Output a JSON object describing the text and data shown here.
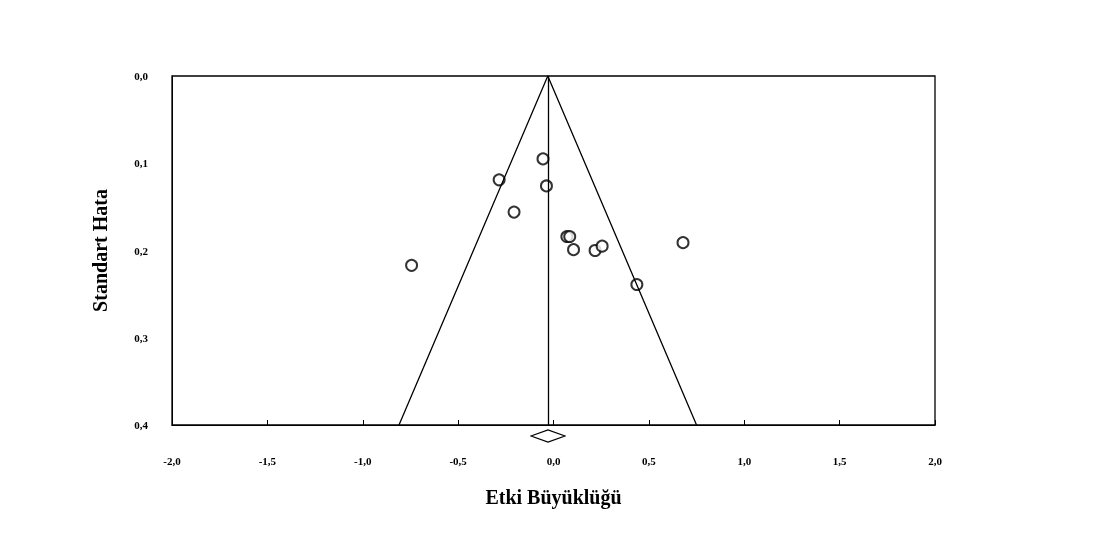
{
  "chart_data": {
    "type": "scatter",
    "xlabel": "Etki Büyüklüğü",
    "ylabel": "Standart Hata",
    "xlim": [
      -2,
      2
    ],
    "xticks": [
      {
        "value": -2,
        "label": "-2,0"
      },
      {
        "value": -1.5,
        "label": "-1,5"
      },
      {
        "value": -1,
        "label": "-1,0"
      },
      {
        "value": -0.5,
        "label": "-0,5"
      },
      {
        "value": 0,
        "label": "0,0"
      },
      {
        "value": 0.5,
        "label": "0,5"
      },
      {
        "value": 1,
        "label": "1,0"
      },
      {
        "value": 1.5,
        "label": "1,5"
      },
      {
        "value": 2,
        "label": "2,0"
      }
    ],
    "ylim": [
      0.4,
      0
    ],
    "yticks": [
      {
        "value": 0,
        "label": "0,0"
      },
      {
        "value": 0.1,
        "label": "0,1"
      },
      {
        "value": 0.2,
        "label": "0,2"
      },
      {
        "value": 0.3,
        "label": "0,3"
      },
      {
        "value": 0.4,
        "label": "0,4"
      }
    ],
    "marker": "circle",
    "series": [
      {
        "type": "scatter",
        "color": "#000000",
        "x": [
          -0.055,
          -0.285,
          -0.037,
          -0.207,
          -0.744,
          0.07,
          0.085,
          0.105,
          0.218,
          0.255,
          0.679,
          0.437
        ],
        "values": [
          0.095,
          0.119,
          0.126,
          0.156,
          0.217,
          0.184,
          0.184,
          0.199,
          0.2,
          0.195,
          0.191,
          0.239
        ]
      },
      {
        "type": "line",
        "color": "#000000",
        "marker": "none",
        "line_style": "solid",
        "x": [
          -0.81,
          -0.03,
          0.75
        ],
        "values": [
          0.4,
          0,
          0.4
        ]
      }
    ],
    "ref_lines": [
      {
        "axis": "x",
        "value": -0.03,
        "color": "#000000"
      }
    ]
  }
}
